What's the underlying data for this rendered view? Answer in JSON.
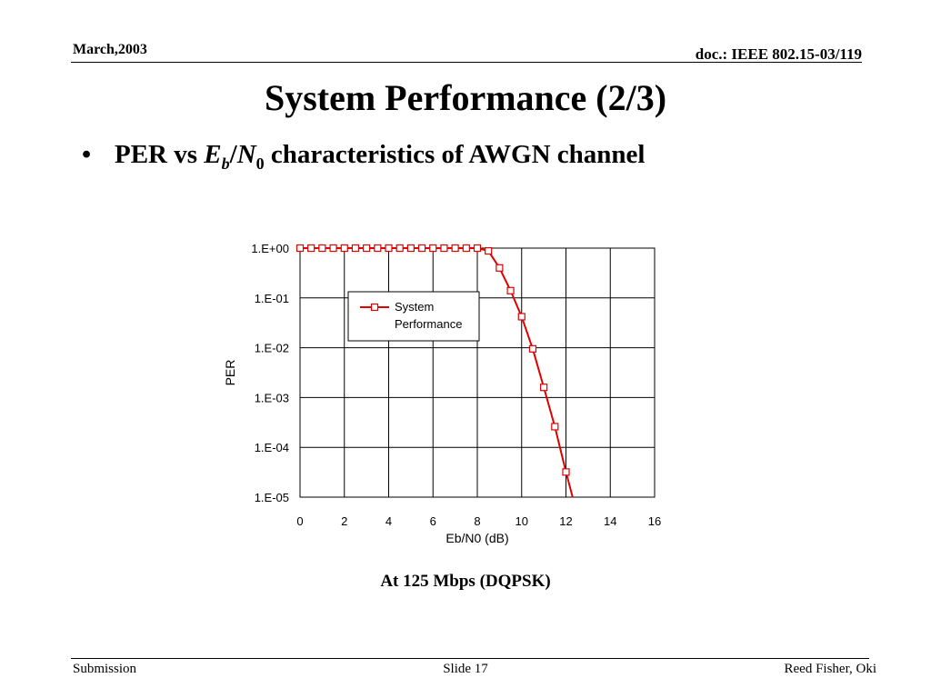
{
  "header": {
    "date": "March,2003",
    "doc_id": "doc.: IEEE 802.15-03/119"
  },
  "slide": {
    "title": "System Performance (2/3)",
    "bullet": {
      "prefix": "PER vs ",
      "eb": "E",
      "eb_sub": "b",
      "slash": "/",
      "n0": "N",
      "n0_sub": "0",
      "suffix": " characteristics of AWGN channel"
    },
    "caption": "At 125 Mbps (DQPSK)"
  },
  "footer": {
    "left": "Submission",
    "center": "Slide 17",
    "right": "Reed Fisher,  Oki"
  },
  "chart_data": {
    "type": "line",
    "xlabel": "Eb/N0 (dB)",
    "ylabel": "PER",
    "xlim": [
      0,
      16
    ],
    "x_ticks": [
      0,
      2,
      4,
      6,
      8,
      10,
      12,
      14,
      16
    ],
    "y_scale": "log",
    "ylim_exponent": [
      -5,
      0
    ],
    "y_tick_labels": [
      "1.E+00",
      "1.E-01",
      "1.E-02",
      "1.E-03",
      "1.E-04",
      "1.E-05"
    ],
    "grid": true,
    "legend_position": "upper-left-inside",
    "series_color": "#e00000",
    "series": [
      {
        "name": "System Performance",
        "x": [
          0,
          0.5,
          1,
          1.5,
          2,
          2.5,
          3,
          3.5,
          4,
          4.5,
          5,
          5.5,
          6,
          6.5,
          7,
          7.5,
          8,
          8.5,
          9,
          9.5,
          10,
          10.5,
          11,
          11.5,
          12
        ],
        "y": [
          1,
          1,
          1,
          1,
          1,
          1,
          1,
          1,
          1,
          1,
          1,
          1,
          1,
          1,
          1,
          1,
          1,
          0.88,
          0.4,
          0.14,
          0.042,
          0.0095,
          0.0016,
          0.00026,
          3.2e-05
        ]
      }
    ],
    "line_end": {
      "x": 12.3,
      "y": 1e-05
    }
  }
}
